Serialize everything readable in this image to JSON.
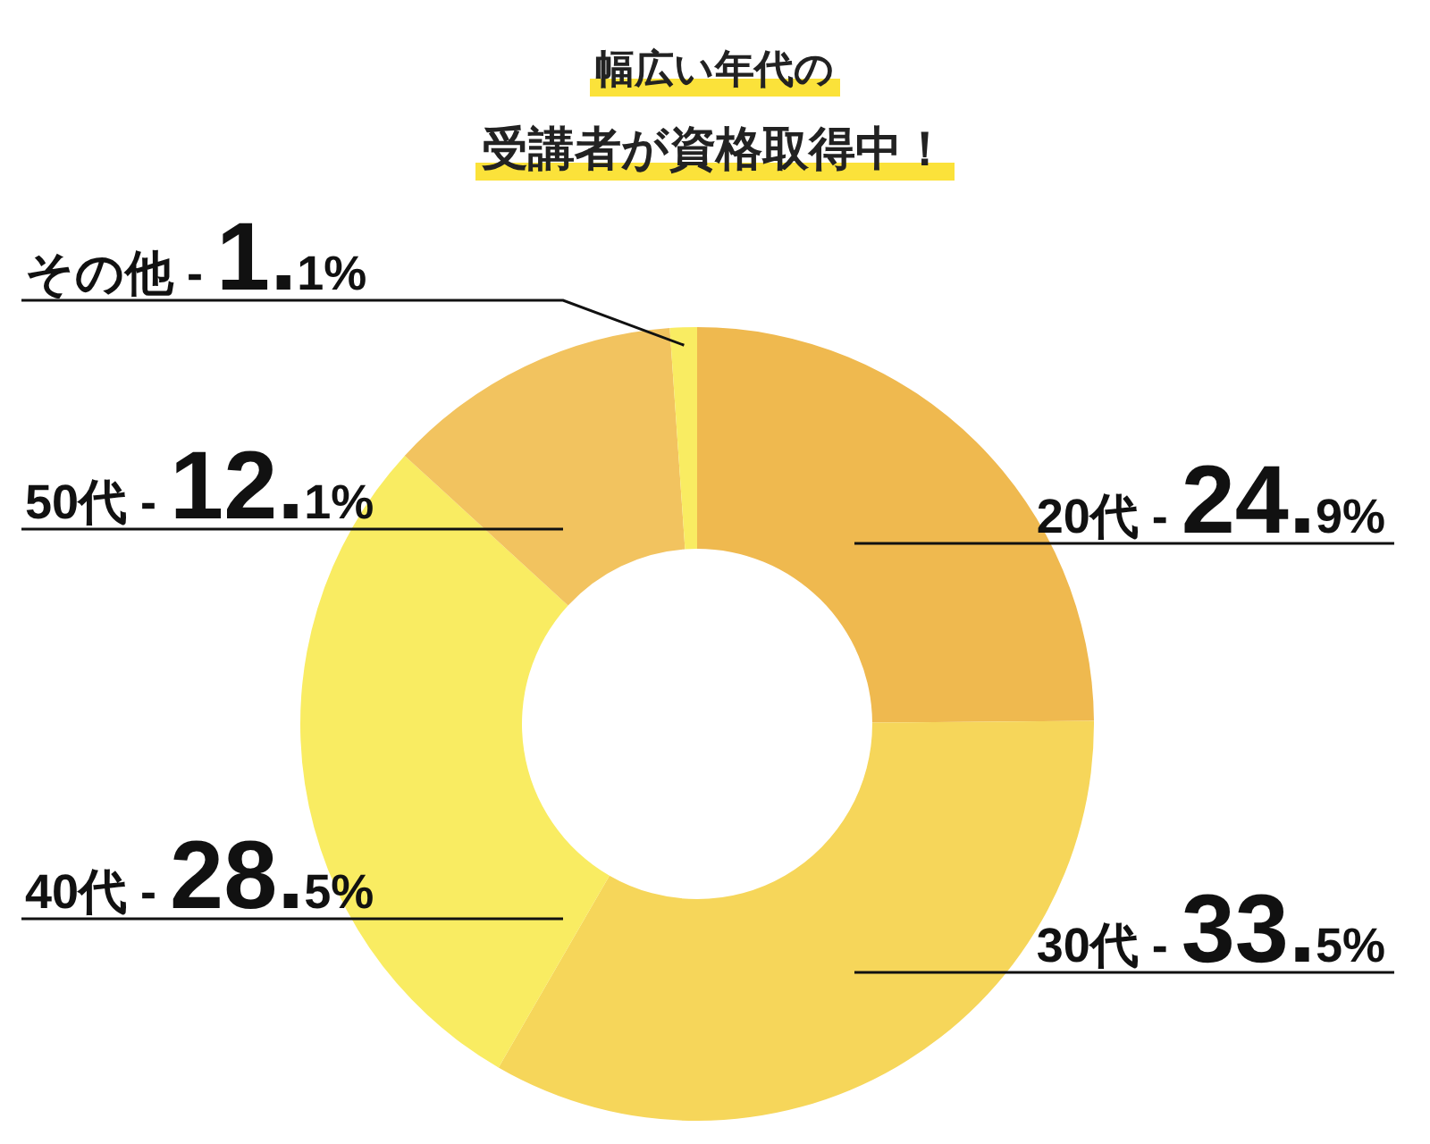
{
  "chart_data": {
    "type": "donut",
    "title": "幅広い年代の",
    "subtitle": "受講者が資格取得中！",
    "categories": [
      "20代 -",
      "30代 -",
      "40代 -",
      "50代 -",
      "その他 -"
    ],
    "values": [
      24.9,
      33.5,
      28.5,
      12.1,
      1.1
    ],
    "value_labels": [
      "24.9%",
      "33.5%",
      "28.5%",
      "12.1%",
      "1.1%"
    ],
    "colors": [
      "#efb94f",
      "#f6d65a",
      "#f9ec62",
      "#f2c35f",
      "#f9ec62"
    ]
  }
}
